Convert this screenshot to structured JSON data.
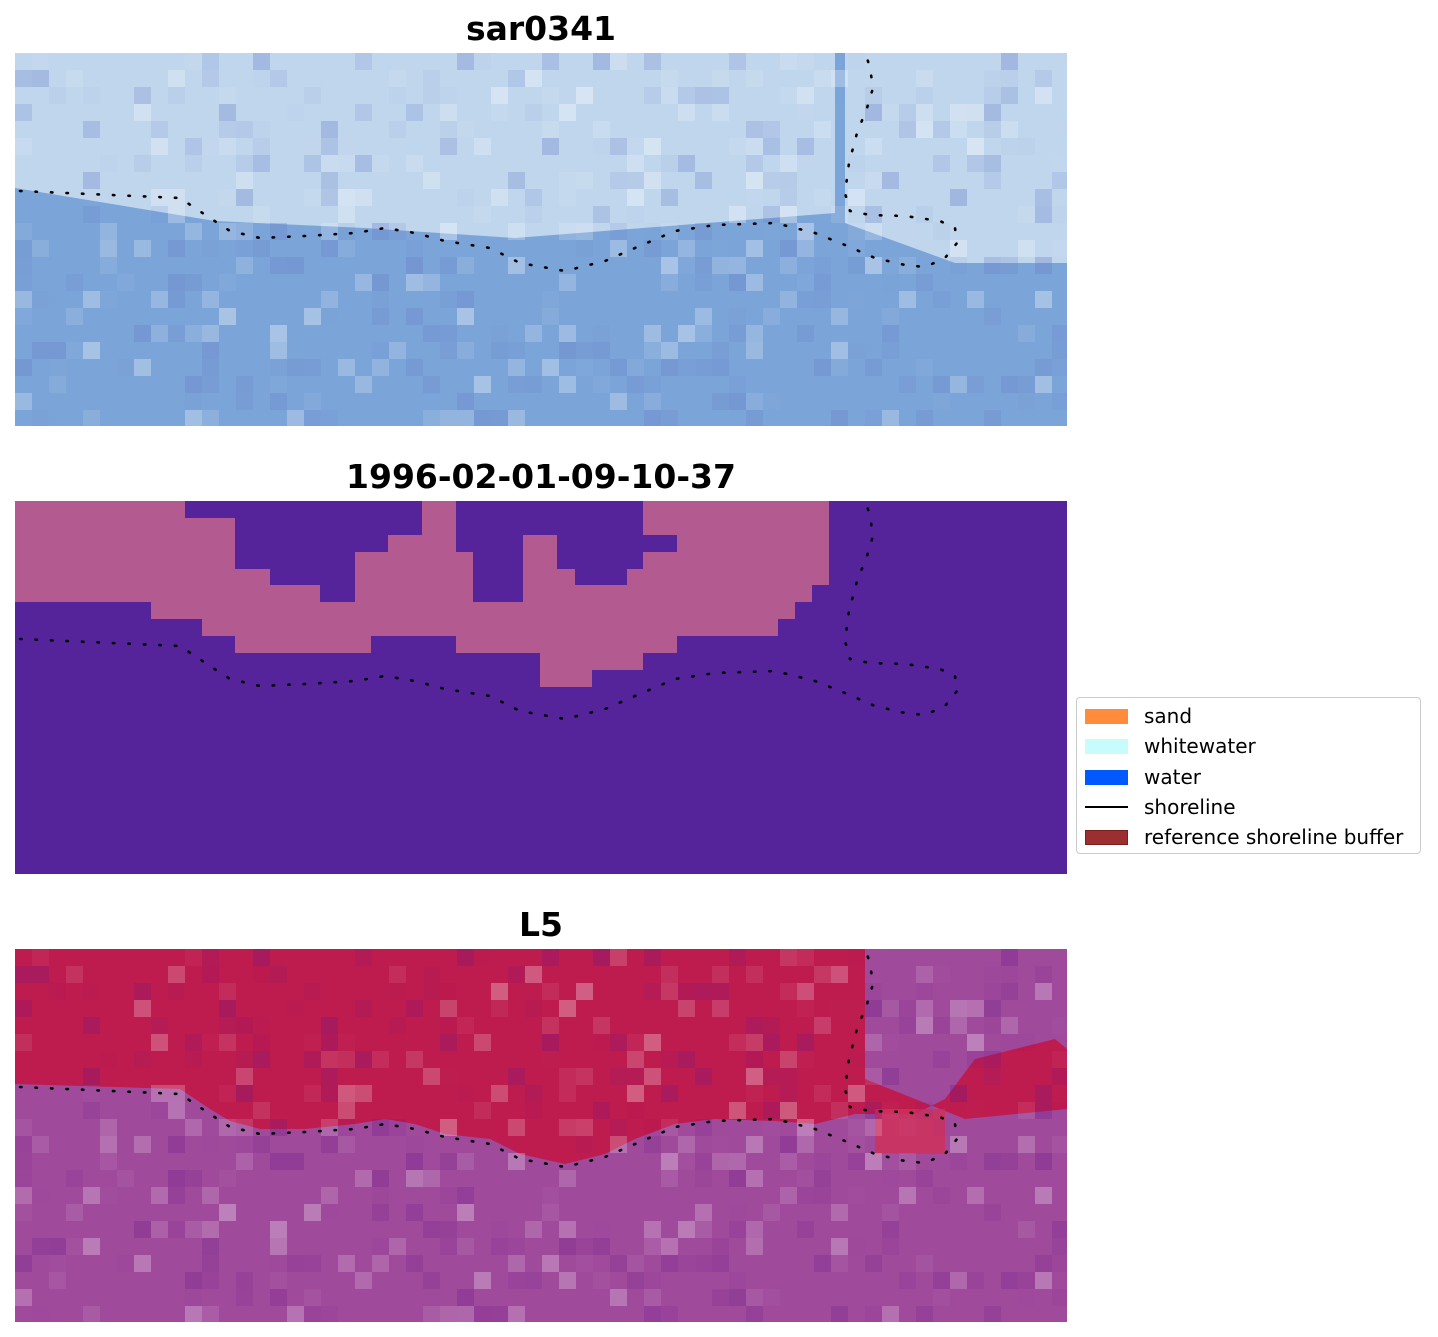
{
  "panels": [
    {
      "title": "sar0341"
    },
    {
      "title": "1996-02-01-09-10-37"
    },
    {
      "title": "L5"
    }
  ],
  "legend": {
    "items": [
      {
        "label": "sand",
        "kind": "patch",
        "color": "#ff8c3a",
        "edge": "#ff8c3a"
      },
      {
        "label": "whitewater",
        "kind": "patch",
        "color": "#c8fcfc",
        "edge": "#c8fcfc"
      },
      {
        "label": "water",
        "kind": "patch",
        "color": "#0059ff",
        "edge": "#0059ff"
      },
      {
        "label": "shoreline",
        "kind": "line",
        "color": "#000000"
      },
      {
        "label": "reference shoreline buffer",
        "kind": "patch",
        "color": "#9b2f2f",
        "edge": "#7a1f1f"
      }
    ]
  },
  "colors": {
    "sar_water": "#7ba4d8",
    "sar_land": "#c8dcf0",
    "class_water": "#55249a",
    "class_land": "#b35b91",
    "l5_land": "#c0184a",
    "l5_water": "#a04a9c",
    "shoreline": "#000000"
  }
}
